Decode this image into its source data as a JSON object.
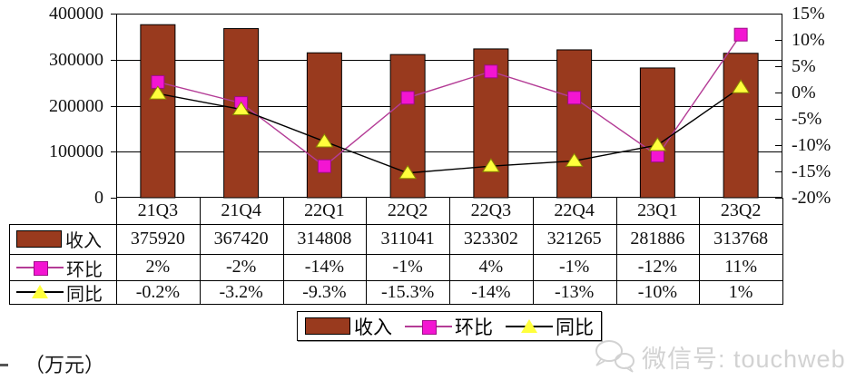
{
  "chart_data": {
    "type": "bar",
    "title": "",
    "categories": [
      "21Q3",
      "21Q4",
      "22Q1",
      "22Q2",
      "22Q3",
      "22Q4",
      "23Q1",
      "23Q2"
    ],
    "series": [
      {
        "name": "收入",
        "type": "bar",
        "axis": "left",
        "values": [
          375920,
          367420,
          314808,
          311041,
          323302,
          321265,
          281886,
          313768
        ],
        "color": "#993a1e",
        "border_color": "#000000"
      },
      {
        "name": "环比",
        "type": "line",
        "marker": "square",
        "axis": "right",
        "values": [
          2,
          -2,
          -14,
          -1,
          4,
          -1,
          -12,
          11
        ],
        "labels": [
          "2%",
          "-2%",
          "-14%",
          "-1%",
          "4%",
          "-1%",
          "-12%",
          "11%"
        ],
        "marker_color": "#f315d2",
        "marker_border": "#9c0c86",
        "line_color": "#b43c96"
      },
      {
        "name": "同比",
        "type": "line",
        "marker": "triangle",
        "axis": "right",
        "values": [
          -0.2,
          -3.2,
          -9.3,
          -15.3,
          -14,
          -13,
          -10,
          1
        ],
        "labels": [
          "-0.2%",
          "-3.2%",
          "-9.3%",
          "-15.3%",
          "-14%",
          "-13%",
          "-10%",
          "1%"
        ],
        "marker_color": "#ffff3c",
        "marker_border": "#8a8a00",
        "line_color": "#000000"
      }
    ],
    "left_axis": {
      "min": 0,
      "max": 400000,
      "tick_labels": [
        "400000",
        "300000",
        "200000",
        "100000",
        "0"
      ]
    },
    "right_axis": {
      "min": -20,
      "max": 15,
      "tick_labels": [
        "15%",
        "10%",
        "5%",
        "0%",
        "-5%",
        "-10%",
        "-15%",
        "-20%"
      ]
    },
    "grid": true,
    "legend_position": "bottom"
  },
  "unit_label": "（万元）",
  "watermark": {
    "text": "微信号: touchweb",
    "icon": "wechat-icon"
  }
}
